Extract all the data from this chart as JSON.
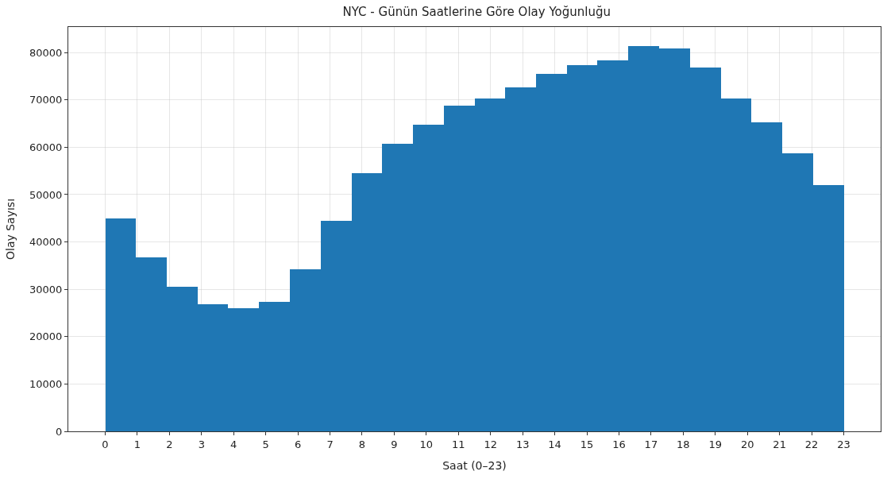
{
  "chart_data": {
    "type": "histogram",
    "title": "NYC - Günün Saatlerine Göre Olay Yoğunluğu",
    "xlabel": "Saat (0–23)",
    "ylabel": "Olay Sayısı",
    "bins": [
      0,
      0.96,
      1.92,
      2.88,
      3.83,
      4.79,
      5.75,
      6.71,
      7.67,
      8.63,
      9.58,
      10.54,
      11.5,
      12.46,
      13.42,
      14.38,
      15.33,
      16.29,
      17.25,
      18.21,
      19.17,
      20.13,
      21.08,
      22.04,
      23
    ],
    "values": [
      45000,
      36700,
      30500,
      26900,
      26000,
      27400,
      34300,
      44400,
      54600,
      60800,
      64800,
      68800,
      70300,
      72700,
      75500,
      77400,
      78300,
      81300,
      80800,
      76800,
      70300,
      65300,
      58700,
      52000
    ],
    "color": "#1f77b4",
    "xlim": [
      -1.15,
      24.15
    ],
    "ylim": [
      0,
      85400
    ],
    "xticks": [
      0,
      1,
      2,
      3,
      4,
      5,
      6,
      7,
      8,
      9,
      10,
      11,
      12,
      13,
      14,
      15,
      16,
      17,
      18,
      19,
      20,
      21,
      22,
      23
    ],
    "yticks": [
      0,
      10000,
      20000,
      30000,
      40000,
      50000,
      60000,
      70000,
      80000
    ],
    "grid": true
  }
}
